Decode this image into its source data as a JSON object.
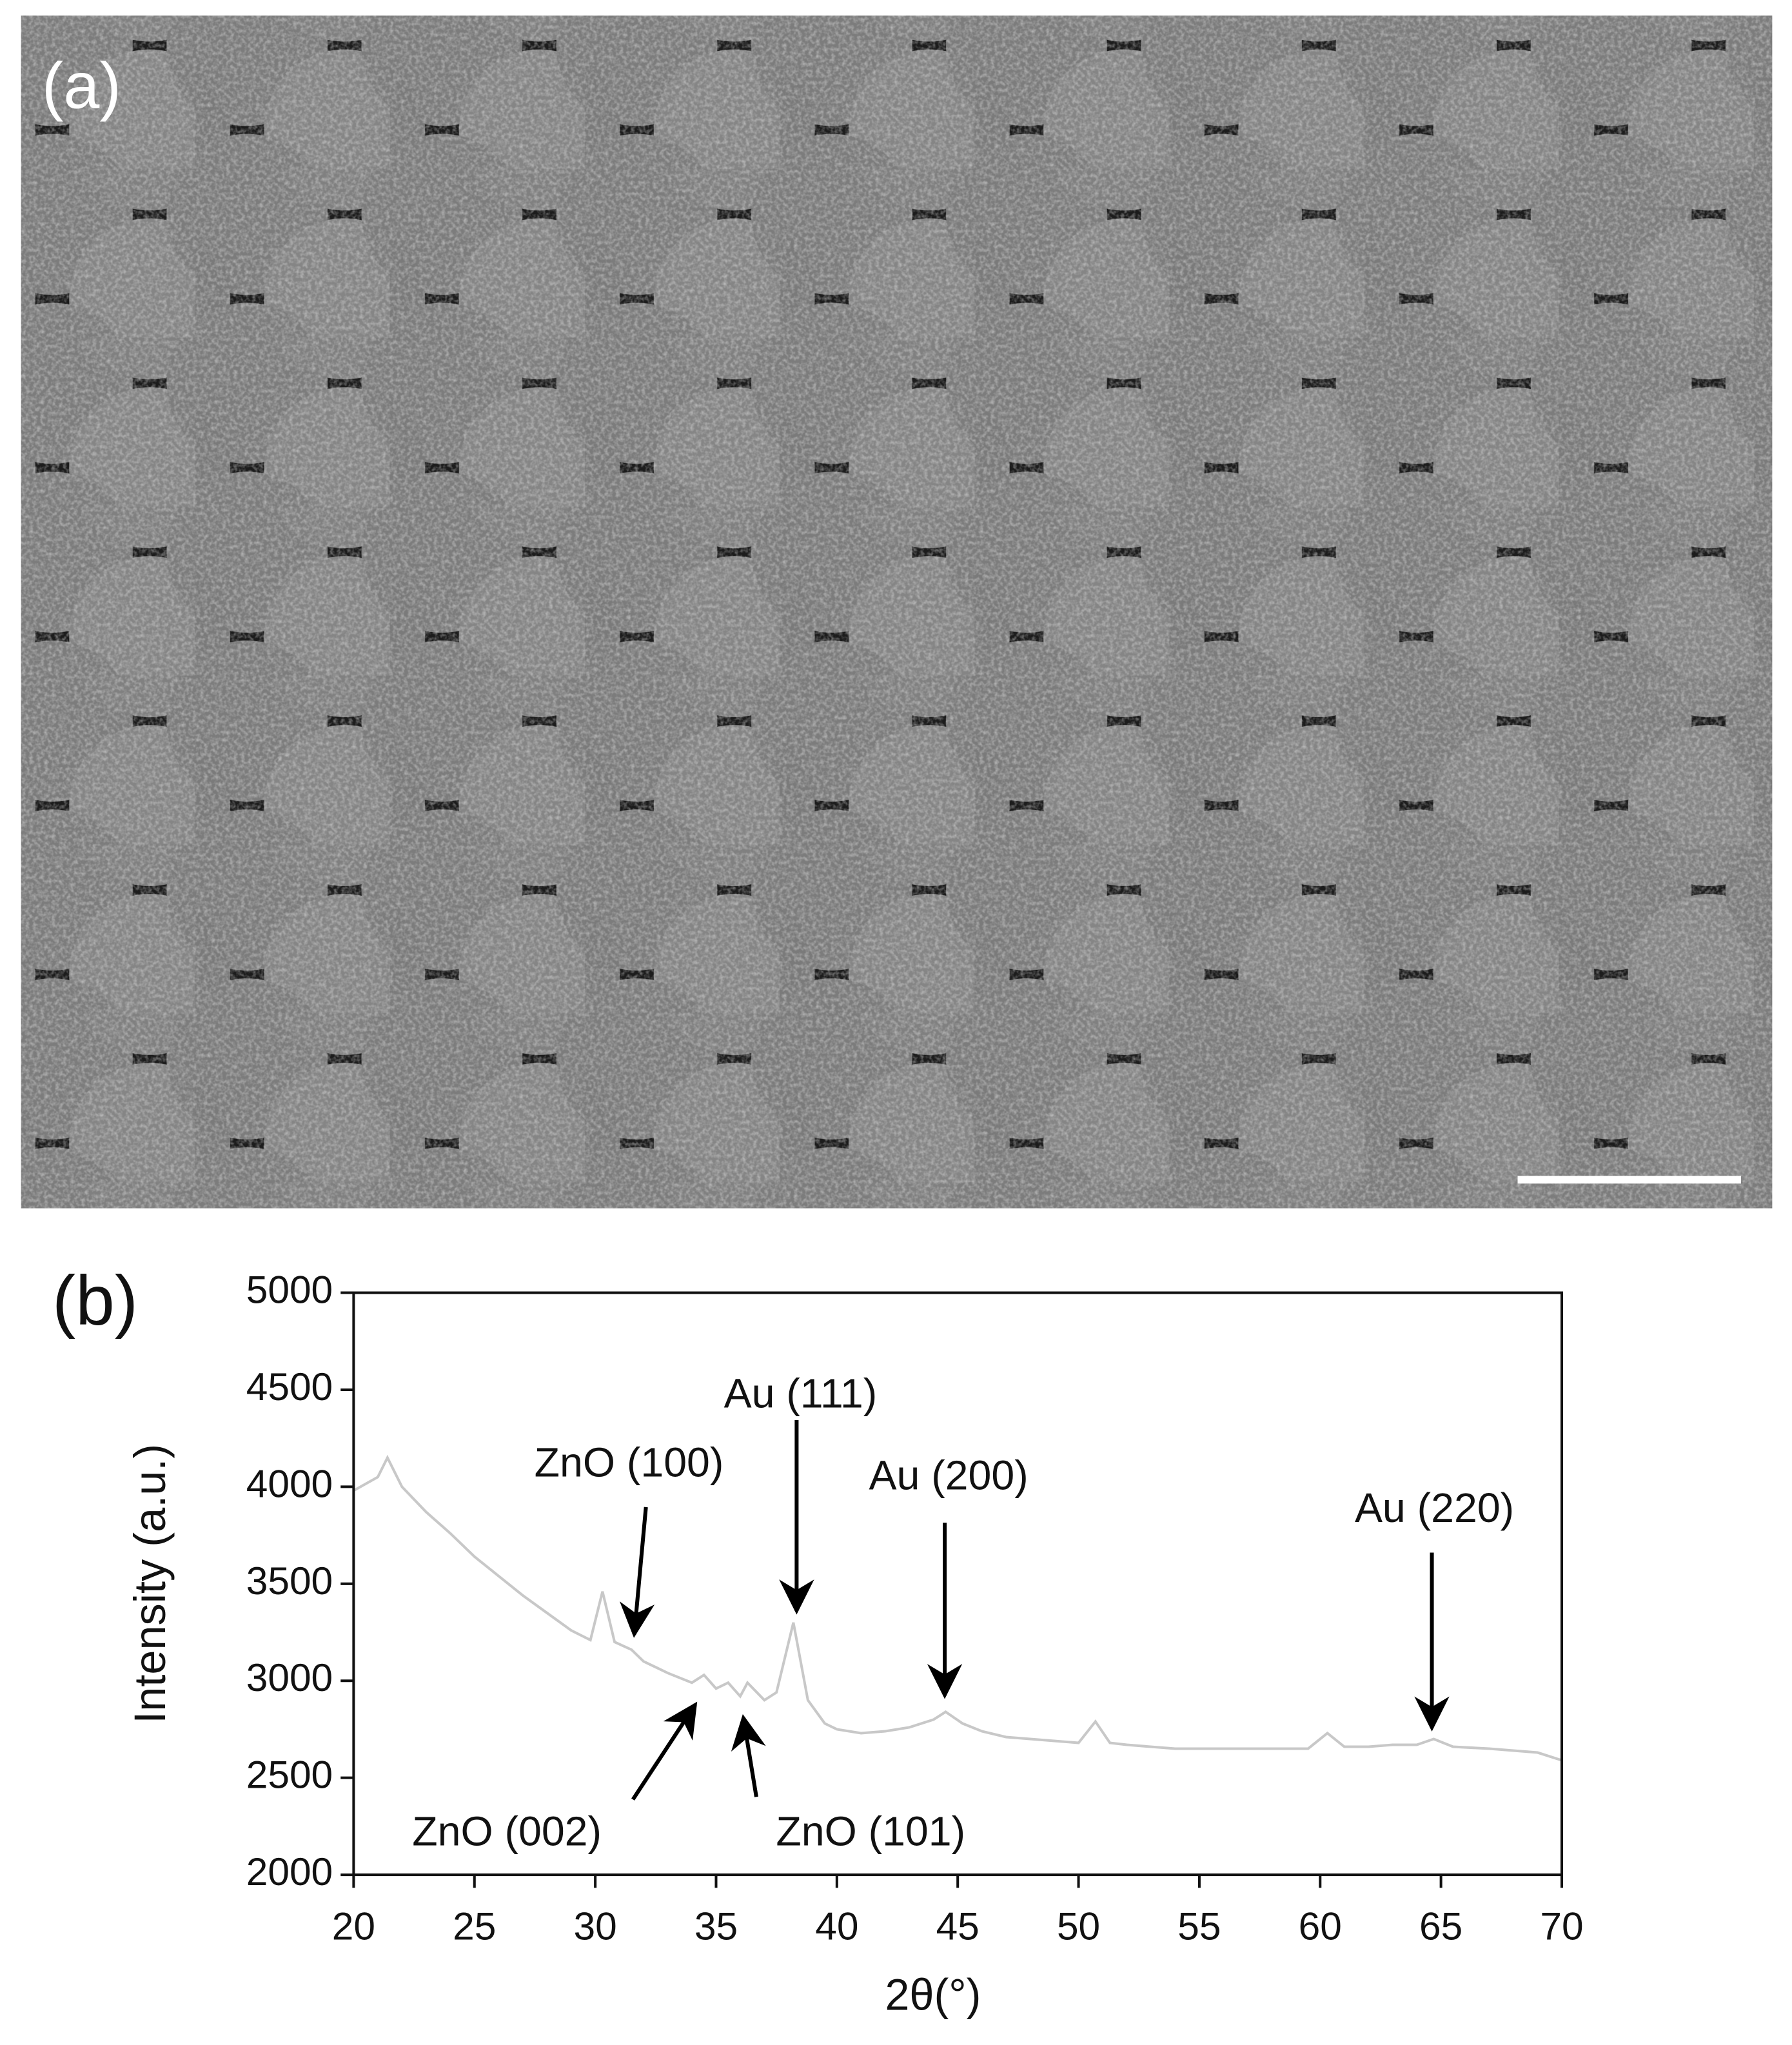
{
  "image_panel": {
    "label": "(a)"
  },
  "chart_data": {
    "type": "line",
    "panel_label": "(b)",
    "x_label": "2θ(°)",
    "y_label": "Intensity (a.u.)",
    "x": [
      20,
      21,
      21.4,
      22,
      23,
      24,
      25,
      26,
      27,
      28,
      29,
      29.8,
      30.3,
      30.8,
      31.5,
      32,
      33,
      34,
      34.5,
      35,
      35.5,
      36,
      36.3,
      37,
      37.5,
      38.2,
      38.8,
      39.5,
      40,
      41,
      42,
      43,
      44,
      44.5,
      45.2,
      46,
      47,
      48,
      49,
      50,
      50.7,
      51.3,
      52,
      54,
      56,
      58,
      59.5,
      60.3,
      61,
      62,
      63,
      64,
      64.7,
      65.5,
      67,
      68,
      69,
      70
    ],
    "values": [
      3980,
      4050,
      4150,
      4000,
      3870,
      3760,
      3640,
      3540,
      3440,
      3350,
      3260,
      3210,
      3460,
      3200,
      3160,
      3100,
      3040,
      2990,
      3030,
      2960,
      2990,
      2920,
      2990,
      2900,
      2940,
      3300,
      2900,
      2780,
      2750,
      2730,
      2740,
      2760,
      2800,
      2840,
      2780,
      2740,
      2710,
      2700,
      2690,
      2680,
      2790,
      2680,
      2670,
      2650,
      2650,
      2650,
      2650,
      2730,
      2660,
      2660,
      2670,
      2670,
      2700,
      2660,
      2650,
      2640,
      2630,
      2590
    ],
    "color": "#c8c8c8",
    "xlim": [
      20,
      70
    ],
    "ylim": [
      2000,
      5000
    ],
    "xticks": [
      20,
      25,
      30,
      35,
      40,
      45,
      50,
      55,
      60,
      65,
      70
    ],
    "yticks": [
      2000,
      2500,
      3000,
      3500,
      4000,
      4500,
      5000
    ],
    "annotations": [
      "ZnO (100)",
      "Au (111)",
      "Au (200)",
      "Au (220)",
      "ZnO (002)",
      "ZnO (101)"
    ]
  }
}
